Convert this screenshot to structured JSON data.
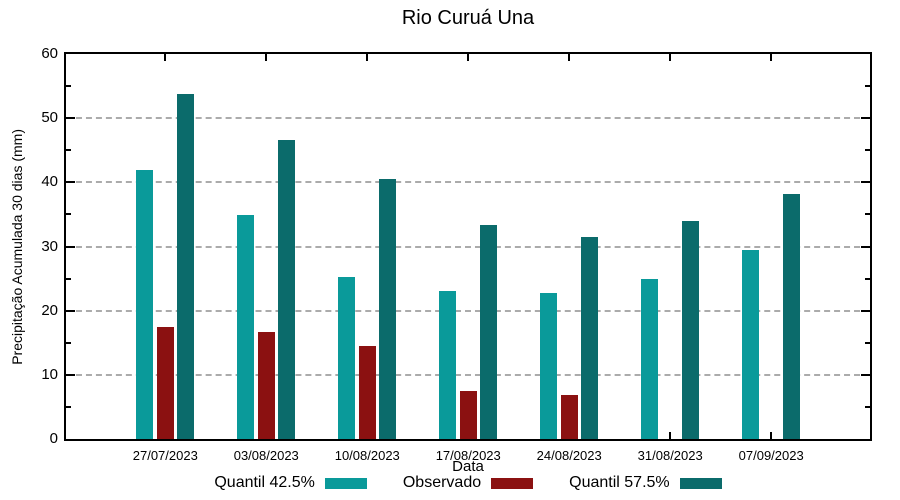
{
  "chart_data": {
    "type": "bar",
    "title": "Rio Curuá Una",
    "xlabel": "Data",
    "ylabel": "Precipitação Acumulada 30 dias (mm)",
    "ylim": [
      0,
      60
    ],
    "yticks": [
      0,
      10,
      20,
      30,
      40,
      50,
      60
    ],
    "minor_tick_step": 5,
    "grid": true,
    "gridline_values": [
      10,
      20,
      30,
      40,
      50
    ],
    "legend_position": "bottom",
    "categories": [
      "27/07/2023",
      "03/08/2023",
      "10/08/2023",
      "17/08/2023",
      "24/08/2023",
      "31/08/2023",
      "07/09/2023"
    ],
    "series": [
      {
        "name": "Quantil 42.5%",
        "color": "#0A9A9A",
        "values": [
          42.0,
          34.9,
          25.2,
          23.1,
          22.8,
          25.0,
          29.5
        ]
      },
      {
        "name": "Observado",
        "color": "#8B1111",
        "values": [
          17.4,
          16.7,
          14.5,
          7.5,
          6.9,
          null,
          null
        ]
      },
      {
        "name": "Quantil 57.5%",
        "color": "#0B6B6B",
        "values": [
          53.7,
          46.6,
          40.5,
          33.3,
          31.5,
          33.9,
          38.2
        ]
      }
    ],
    "colors": {
      "grid": "#ababab",
      "axis": "#000000",
      "background": "#ffffff"
    }
  }
}
